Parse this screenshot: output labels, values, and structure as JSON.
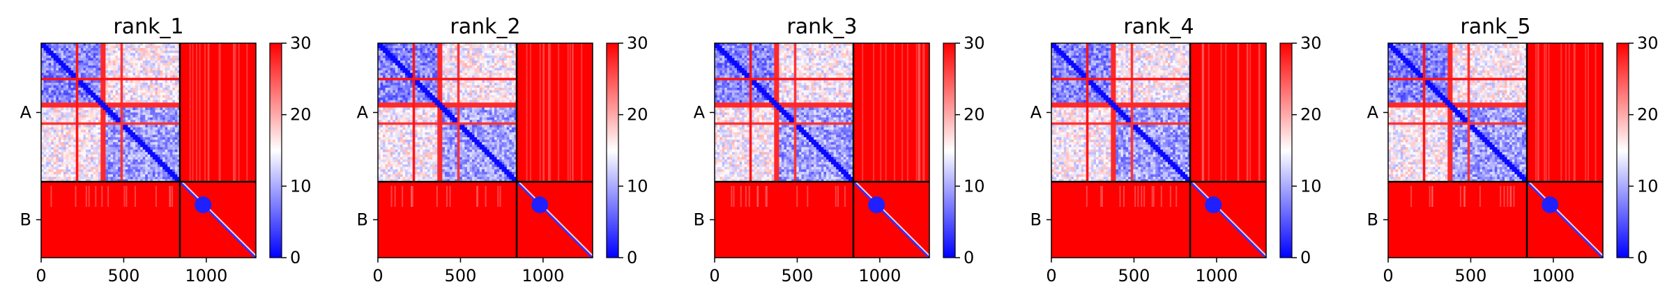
{
  "chart_data": [
    {
      "type": "heatmap",
      "title": "rank_1",
      "x_ticks": [
        0,
        500,
        1000
      ],
      "xlim": [
        0,
        1300
      ],
      "y_tick_labels": [
        "A",
        "B"
      ],
      "chain_boundary": 840,
      "colorbar": {
        "min": 0,
        "max": 30,
        "ticks": [
          0,
          10,
          20,
          30
        ],
        "colors": [
          "#0000ff",
          "#ffffff",
          "#ff0000"
        ]
      }
    },
    {
      "type": "heatmap",
      "title": "rank_2",
      "x_ticks": [
        0,
        500,
        1000
      ],
      "xlim": [
        0,
        1300
      ],
      "y_tick_labels": [
        "A",
        "B"
      ],
      "chain_boundary": 840,
      "colorbar": {
        "min": 0,
        "max": 30,
        "ticks": [
          0,
          10,
          20,
          30
        ],
        "colors": [
          "#0000ff",
          "#ffffff",
          "#ff0000"
        ]
      }
    },
    {
      "type": "heatmap",
      "title": "rank_3",
      "x_ticks": [
        0,
        500,
        1000
      ],
      "xlim": [
        0,
        1300
      ],
      "y_tick_labels": [
        "A",
        "B"
      ],
      "chain_boundary": 840,
      "colorbar": {
        "min": 0,
        "max": 30,
        "ticks": [
          0,
          10,
          20,
          30
        ],
        "colors": [
          "#0000ff",
          "#ffffff",
          "#ff0000"
        ]
      }
    },
    {
      "type": "heatmap",
      "title": "rank_4",
      "x_ticks": [
        0,
        500,
        1000
      ],
      "xlim": [
        0,
        1300
      ],
      "y_tick_labels": [
        "A",
        "B"
      ],
      "chain_boundary": 840,
      "colorbar": {
        "min": 0,
        "max": 30,
        "ticks": [
          0,
          10,
          20,
          30
        ],
        "colors": [
          "#0000ff",
          "#ffffff",
          "#ff0000"
        ]
      }
    },
    {
      "type": "heatmap",
      "title": "rank_5",
      "x_ticks": [
        0,
        500,
        1000
      ],
      "xlim": [
        0,
        1300
      ],
      "y_tick_labels": [
        "A",
        "B"
      ],
      "chain_boundary": 840,
      "colorbar": {
        "min": 0,
        "max": 30,
        "ticks": [
          0,
          10,
          20,
          30
        ],
        "colors": [
          "#0000ff",
          "#ffffff",
          "#ff0000"
        ]
      }
    }
  ]
}
